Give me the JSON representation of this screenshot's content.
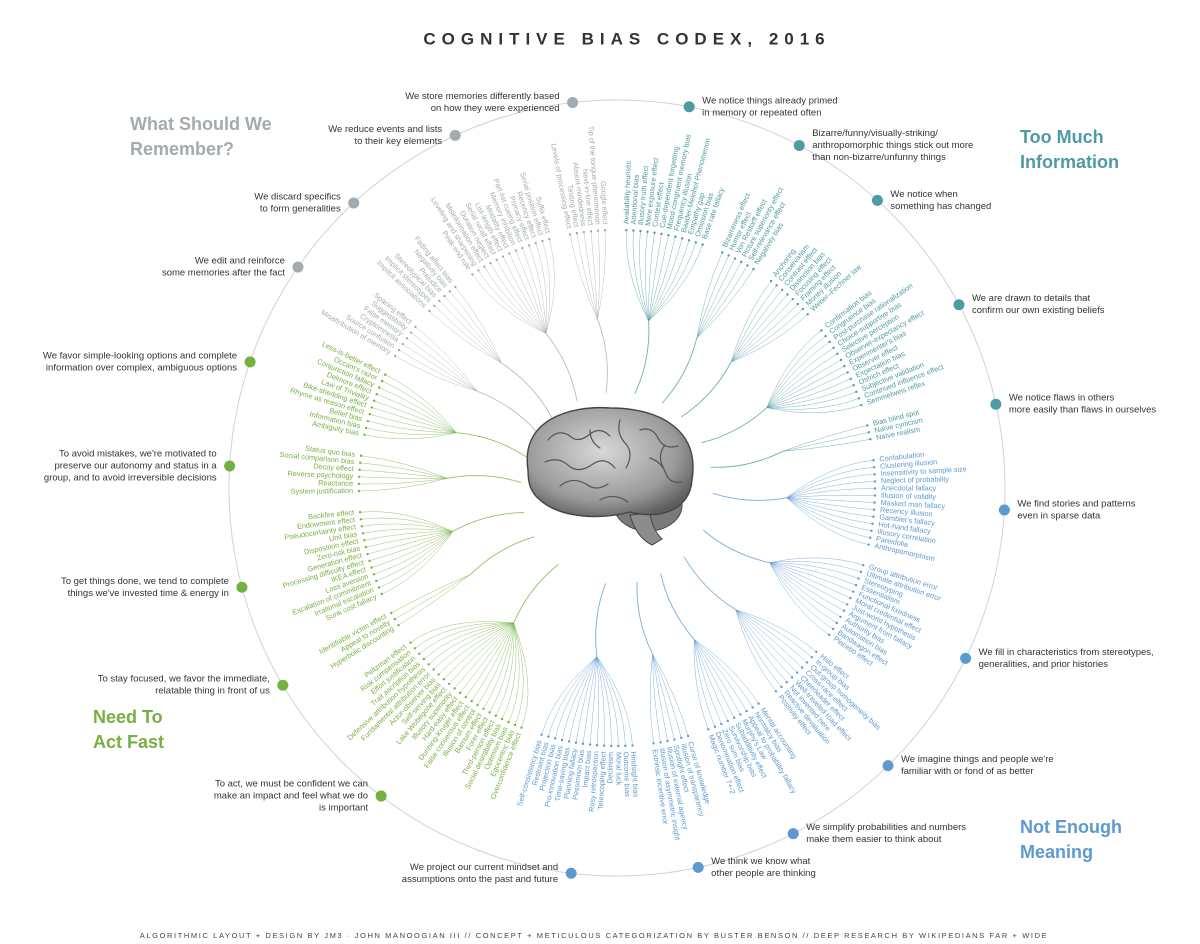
{
  "header": {
    "title": "COGNITIVE BIAS CODEX, 2016"
  },
  "footer": {
    "text": "ALGORITHMIC LAYOUT + DESIGN BY JM3 · JOHN MANOOGIAN III // CONCEPT + METICULOUS CATEGORIZATION BY BUSTER BENSON // DEEP RESEARCH BY WIKIPEDIANS FAR + WIDE"
  },
  "quadrants": [
    {
      "title": [
        "Too Much",
        "Information"
      ],
      "color": "#4f9aa3",
      "groups": [
        {
          "text": [
            "We notice things already primed",
            "in memory or repeated often"
          ],
          "biases": [
            "Availability heuristic",
            "Attentional bias",
            "Illusory truth effect",
            "Mere exposure effect",
            "Context effect",
            "Cue-dependent forgetting",
            "Mood-congruent memory bias",
            "Frequency illusion",
            "Baader-Meinhof Phenomenon",
            "Empathy gap",
            "Omission bias",
            "Base rate fallacy"
          ]
        },
        {
          "text": [
            "Bizarre/funny/visually-striking/",
            "anthropomorphic things stick out more",
            "than non-bizarre/unfunny things"
          ],
          "biases": [
            "Bizarreness effect",
            "Humor effect",
            "Von Restorff effect",
            "Picture superiority effect",
            "Self-relevance effect",
            "Negativity bias"
          ]
        },
        {
          "text": [
            "We notice when",
            "something has changed"
          ],
          "biases": [
            "Anchoring",
            "Conservatism",
            "Contrast effect",
            "Distinction bias",
            "Focusing effect",
            "Framing effect",
            "Money illusion",
            "Weber–Fechner law"
          ]
        },
        {
          "text": [
            "We are drawn to details that",
            "confirm our own existing beliefs"
          ],
          "biases": [
            "Confirmation bias",
            "Congruence bias",
            "Post-purchase rationalization",
            "Choice-supportive bias",
            "Selective perception",
            "Observer-expectancy effect",
            "Experimenter's bias",
            "Observer effect",
            "Expectation bias",
            "Ostrich effect",
            "Subjective validation",
            "Continued influence effect",
            "Semmelweis reflex"
          ]
        },
        {
          "text": [
            "We notice flaws in others",
            "more easily than flaws in ourselves"
          ],
          "biases": [
            "Bias blind spot",
            "Naïve cynicism",
            "Naïve realism"
          ]
        }
      ]
    },
    {
      "title": [
        "Not Enough",
        "Meaning"
      ],
      "color": "#5e98d0",
      "groups": [
        {
          "text": [
            "We find stories and patterns",
            "even in sparse data"
          ],
          "biases": [
            "Confabulation",
            "Clustering illusion",
            "Insensitivity to sample size",
            "Neglect of probability",
            "Anecdotal fallacy",
            "Illusion of validity",
            "Masked man fallacy",
            "Recency illusion",
            "Gambler's fallacy",
            "Hot-hand fallacy",
            "Illusory correlation",
            "Pareidolia",
            "Anthropomorphism"
          ]
        },
        {
          "text": [
            "We fill in characteristics from stereotypes,",
            "generalities, and prior histories"
          ],
          "biases": [
            "Group attribution error",
            "Ultimate attribution error",
            "Stereotyping",
            "Essentialism",
            "Functional fixedness",
            "Moral credential effect",
            "Just-world hypothesis",
            "Argument from fallacy",
            "Authority bias",
            "Automation bias",
            "Bandwagon effect",
            "Placebo effect"
          ]
        },
        {
          "text": [
            "We imagine things and people we're",
            "familiar with or fond of as better"
          ],
          "biases": [
            "Halo effect",
            "In-group bias",
            "Out-group homogeneity bias",
            "Cross-race effect",
            "Cheerleader effect",
            "Well-traveled road effect",
            "Not invented here",
            "Reactive devaluation",
            "Positivity effect"
          ]
        },
        {
          "text": [
            "We simplify probabilities and numbers",
            "make them easier to think about"
          ],
          "biases": [
            "Mental accounting",
            "Normalcy bias",
            "Appeal to probability fallacy",
            "Murphy's Law",
            "Subadditivity effect",
            "Survivorship bias",
            "Zero sum bias",
            "Denomination effect",
            "Magic number 7+-2"
          ]
        },
        {
          "text": [
            "We think we know what",
            "other people are thinking"
          ],
          "biases": [
            "Curse of knowledge",
            "Illusion of transparency",
            "Spotlight effect",
            "Illusion of external agency",
            "Illusion of asymmetric insight",
            "Extrinsic incentive error"
          ]
        },
        {
          "text": [
            "We project our current mindset and",
            "assumptions onto the past and future"
          ],
          "biases": [
            "Hindsight bias",
            "Outcome bias",
            "Moral luck",
            "Declinism",
            "Telescoping effect",
            "Rosy retrospection",
            "Impact bias",
            "Pessimism bias",
            "Planning fallacy",
            "Time-saving bias",
            "Pro-innovation bias",
            "Projection bias",
            "Restraint bias",
            "Self-consistency bias"
          ]
        }
      ]
    },
    {
      "title": [
        "Need To",
        "Act Fast"
      ],
      "color": "#76b041",
      "groups": [
        {
          "text": [
            "To act, we must be confident we can",
            "make an impact and feel what we do",
            "is important"
          ],
          "biases": [
            "Overconfidence effect",
            "Egocentric bias",
            "Optimism bias",
            "Social desirability bias",
            "Third-person effect",
            "Forer effect",
            "Barnum effect",
            "Illusion of control",
            "False consensus effect",
            "Dunning-Kruger effect",
            "Hard-easy effect",
            "Illusory superiority",
            "Lake Wobegone effect",
            "Self-serving bias",
            "Actor-observer bias",
            "Fundamental attribution error",
            "Defensive attribution hypothesis",
            "Trait ascription bias",
            "Effort justification",
            "Risk compensation",
            "Peltzman effect"
          ]
        },
        {
          "text": [
            "To stay focused, we favor the immediate,",
            "relatable thing in front of us"
          ],
          "biases": [
            "Hyperbolic discounting",
            "Appeal to novelty",
            "Identifiable victim effect"
          ]
        },
        {
          "text": [
            "To get things done, we tend to complete",
            "things we've invested time & energy in"
          ],
          "biases": [
            "Sunk cost fallacy",
            "Irrational escalation",
            "Escalation of commitment",
            "Loss aversion",
            "IKEA effect",
            "Processing difficulty effect",
            "Generation effect",
            "Zero-risk bias",
            "Disposition effect",
            "Unit bias",
            "Pseudocertainty effect",
            "Endowment effect",
            "Backfire effect"
          ]
        },
        {
          "text": [
            "To avoid mistakes, we're motivated to",
            "preserve our autonomy and status in a",
            "group, and to avoid irreversible decisions"
          ],
          "biases": [
            "System justification",
            "Reactance",
            "Reverse psychology",
            "Decoy effect",
            "Social comparison bias",
            "Status quo bias"
          ]
        },
        {
          "text": [
            "We favor simple-looking options and complete",
            "information over complex, ambiguous options"
          ],
          "biases": [
            "Ambiguity bias",
            "Information bias",
            "Belief bias",
            "Rhyme as reason effect",
            "Bike-shedding effect",
            "Law of Triviality",
            "Delmore effect",
            "Conjunction fallacy",
            "Occam's razor",
            "Less-is-better effect"
          ]
        }
      ]
    },
    {
      "title": [
        "What Should We",
        "Remember?"
      ],
      "color": "#a3abb0",
      "groups": [
        {
          "text": [
            "We edit and reinforce",
            "some memories after the fact"
          ],
          "biases": [
            "Misattribution of memory",
            "Source confusion",
            "Cryptomnesia",
            "False memory",
            "Suggestibility",
            "Spacing effect"
          ]
        },
        {
          "text": [
            "We discard specifics",
            "to form generalities"
          ],
          "biases": [
            "Implicit associations",
            "Implicit stereotypes",
            "Stereotypical bias",
            "Prejudice",
            "Negativity bias",
            "Fading affect bias"
          ]
        },
        {
          "text": [
            "We reduce events and lists",
            "to their key elements"
          ],
          "biases": [
            "Peak-end rule",
            "Leveling and sharpening",
            "Misinformation effect",
            "Duration neglect",
            "Serial recall effect",
            "List-length effect",
            "Modality effect",
            "Memory inhibition",
            "Part-list cueing effect",
            "Primacy effect",
            "Recency effect",
            "Serial position effect",
            "Suffix effect"
          ]
        },
        {
          "text": [
            "We store memories differently based",
            "on how they were experienced"
          ],
          "biases": [
            "Levels of processing effect",
            "Testing effect",
            "Absent-mindedness",
            "Next-in-line effect",
            "Tip of the tongue phenomenon",
            "Google effect"
          ]
        }
      ]
    }
  ]
}
